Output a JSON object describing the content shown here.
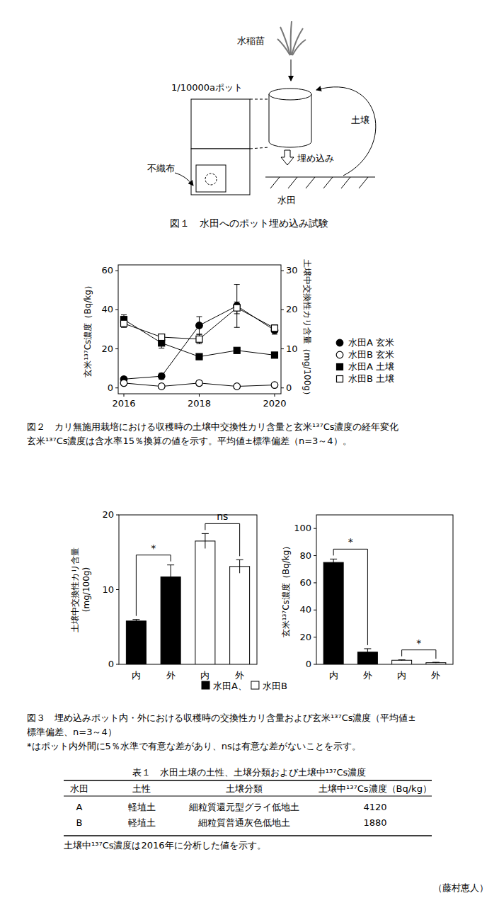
{
  "figure1": {
    "labels": {
      "seedling": "水稲苗",
      "pot": "1/10000aポット",
      "fabric": "不織布",
      "soil": "土壌",
      "bury": "埋め込み",
      "paddy": "水田"
    },
    "caption": "図１　水田へのポット埋め込み試験"
  },
  "chart_data": [
    {
      "type": "line",
      "x": [
        2016,
        2017,
        2018,
        2019,
        2020
      ],
      "xlim": [
        2015.85,
        2020.17
      ],
      "xticks": [
        2016,
        2018,
        2020
      ],
      "ylabel": "玄米¹³⁷Cs濃度（Bq/kg）",
      "y2label": "土壌中交換性カリ含量（mg/100g）",
      "ylim": [
        -3,
        63
      ],
      "yticks": [
        0,
        20,
        40,
        60
      ],
      "y2lim": [
        -1.5,
        31.5
      ],
      "y2ticks": [
        0,
        10,
        20,
        30
      ],
      "legend": "right",
      "series": [
        {
          "name": "水田A 玄米",
          "color": "#000000",
          "marker": "circle",
          "line_style": "solid",
          "values": [
            4.5,
            6,
            32,
            42,
            29.5
          ],
          "errors": [
            1,
            1.5,
            4.5,
            11,
            2
          ]
        },
        {
          "name": "水田B 玄米",
          "color": "#000000",
          "marker": "circle-open",
          "line_style": "solid",
          "values": [
            2.5,
            0.8,
            2.5,
            0.8,
            1.5
          ],
          "errors": [
            0.5,
            0.3,
            1.2,
            0.3,
            0.3
          ]
        },
        {
          "name": "水田A 土壌",
          "color": "#000000",
          "marker": "square",
          "line_style": "solid",
          "axis": "y2",
          "values": [
            17.5,
            11.5,
            8,
            9.6,
            8.4
          ],
          "errors": [
            1.2,
            1.3,
            0.3,
            0.3,
            0.3
          ]
        },
        {
          "name": "水田B 土壌",
          "color": "#000000",
          "marker": "square-open",
          "line_style": "solid",
          "axis": "y2",
          "values": [
            16.5,
            13,
            12.5,
            20.5,
            15.3
          ],
          "errors": [
            1.0,
            0.8,
            1.2,
            1.5,
            0.8
          ]
        }
      ]
    },
    {
      "type": "bar",
      "categories": [
        "内",
        "外",
        "内",
        "外"
      ],
      "values": [
        5.8,
        11.7,
        16.5,
        13.1
      ],
      "errors": [
        0.2,
        1.6,
        1.0,
        0.9
      ],
      "colors": [
        "#000000",
        "#000000",
        "#ffffff",
        "#ffffff"
      ],
      "ylim": [
        0,
        20
      ],
      "yticks": [
        0,
        10,
        20
      ],
      "ylabel": [
        "土壌中交換性カリ含量",
        "(mg/100g)"
      ],
      "annotations": [
        "*",
        "ns"
      ]
    },
    {
      "type": "bar",
      "categories": [
        "内",
        "外",
        "内",
        "外"
      ],
      "values": [
        75,
        9,
        3,
        1.2
      ],
      "errors": [
        2.5,
        2.5,
        0.3,
        0.3
      ],
      "colors": [
        "#000000",
        "#000000",
        "#ffffff",
        "#ffffff"
      ],
      "ylim": [
        0,
        110
      ],
      "yticks": [
        0,
        20,
        40,
        60,
        80,
        100
      ],
      "ylabel": [
        "玄米¹³⁷Cs濃度（Bq/kg）"
      ],
      "annotations": [
        "*",
        "*"
      ]
    }
  ],
  "figure2": {
    "caption": [
      "図２　カリ無施用栽培における収穫時の土壌中交換性カリ含量と玄米¹³⁷Cs濃度の経年変化",
      "玄米¹³⁷Cs濃度は含水率15％換算の値を示す。平均値±標準偏差（n=3～4）。"
    ]
  },
  "figure3": {
    "legend_items": [
      {
        "label": "水田A、",
        "color": "#000000"
      },
      {
        "label": "水田B",
        "color": "#ffffff"
      }
    ],
    "caption": [
      "図３　埋め込みポット内・外における収穫時の交換性カリ含量および玄米¹³⁷Cs濃度（平均値±",
      "標準偏差、n=3～4）",
      "*はポット内外間に5％水準で有意な差があり、nsは有意な差がないことを示す。"
    ]
  },
  "table1": {
    "title": "表１　水田土壌の土性、土壌分類および土壌中¹³⁷Cs濃度",
    "header": [
      "水田",
      "土性",
      "土壌分類",
      "土壌中¹³⁷Cs濃度（Bq/kg）"
    ],
    "rows": [
      [
        "A",
        "軽埴土",
        "細粒質還元型グライ低地土",
        4120
      ],
      [
        "B",
        "軽埴土",
        "細粒質普通灰色低地土",
        1880
      ]
    ],
    "note": "土壌中¹³⁷Cs濃度は2016年に分析した値を示す。"
  },
  "author": "（藤村恵人）"
}
